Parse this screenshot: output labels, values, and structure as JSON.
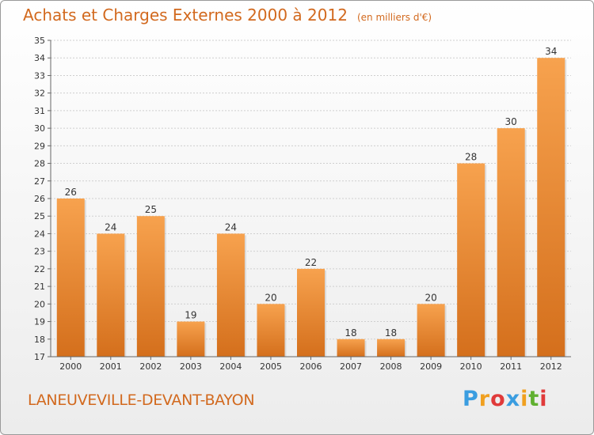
{
  "header": {
    "title": "Achats et Charges Externes 2000 à 2012",
    "unit": "(en milliers d'€)"
  },
  "footer": {
    "city": "LANEUVEVILLE-DEVANT-BAYON",
    "brand_letters": [
      "P",
      "r",
      "o",
      "x",
      "i",
      "t",
      "i"
    ],
    "brand_colors": [
      "#3a9de0",
      "#f0a020",
      "#e03a3a",
      "#3a9de0",
      "#f0a020",
      "#60b030",
      "#e03a3a"
    ]
  },
  "chart_data": {
    "type": "bar",
    "categories": [
      "2000",
      "2001",
      "2002",
      "2003",
      "2004",
      "2005",
      "2006",
      "2007",
      "2008",
      "2009",
      "2010",
      "2011",
      "2012"
    ],
    "values": [
      26,
      24,
      25,
      19,
      24,
      20,
      22,
      18,
      18,
      20,
      28,
      30,
      34
    ],
    "title": "Achats et Charges Externes 2000 à 2012",
    "ylim": [
      17,
      35
    ],
    "yticks": [
      17,
      18,
      19,
      20,
      21,
      22,
      23,
      24,
      25,
      26,
      27,
      28,
      29,
      30,
      31,
      32,
      33,
      34,
      35
    ],
    "grid": true,
    "bar_color": "#f0a050"
  }
}
